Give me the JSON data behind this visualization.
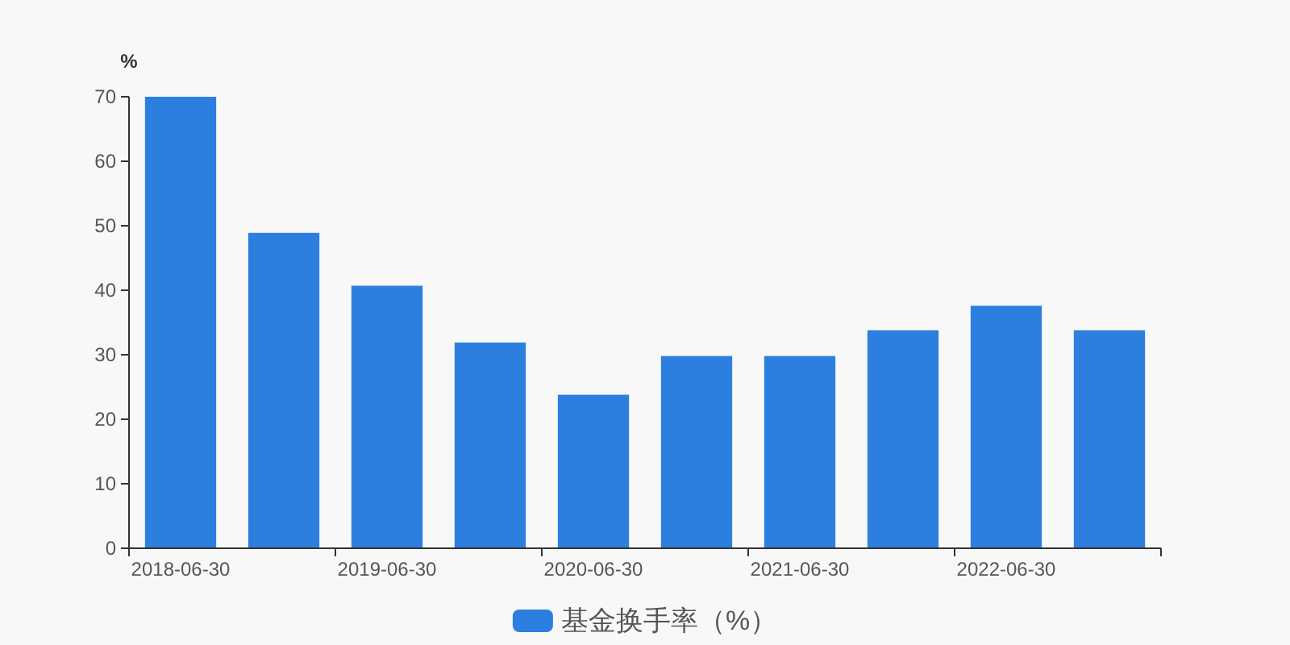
{
  "chart_data": {
    "type": "bar",
    "categories": [
      "2018-06-30",
      null,
      "2019-06-30",
      null,
      "2020-06-30",
      null,
      "2021-06-30",
      null,
      "2022-06-30",
      null
    ],
    "series": [
      {
        "name": "基金换手率（%）",
        "color": "#2c7fdf",
        "values": [
          70.0,
          48.9,
          40.7,
          31.9,
          23.8,
          29.8,
          29.8,
          33.8,
          37.6,
          33.8
        ]
      }
    ],
    "ylabel": "%",
    "ylim": [
      0,
      70
    ],
    "yticks": [
      0,
      10,
      20,
      30,
      40,
      50,
      60,
      70
    ],
    "legend": "bottom"
  }
}
